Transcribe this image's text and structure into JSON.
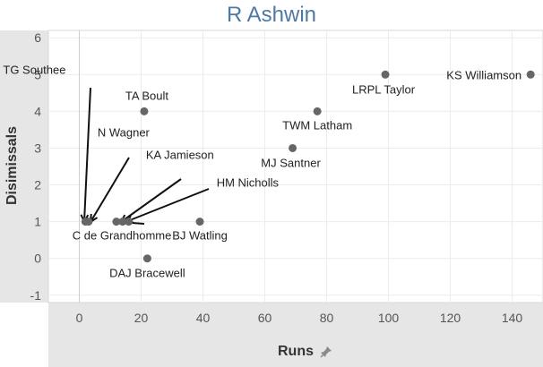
{
  "chart_data": {
    "type": "scatter",
    "title": "R Ashwin",
    "xlabel": "Runs",
    "ylabel": "Disimissals",
    "xlim": [
      -10,
      150
    ],
    "ylim": [
      -1.2,
      6.2
    ],
    "x_ticks": [
      0,
      20,
      40,
      60,
      80,
      100,
      120,
      140
    ],
    "y_ticks": [
      -1,
      0,
      1,
      2,
      3,
      4,
      5,
      6
    ],
    "point_color": "#666666",
    "points": [
      {
        "label": "TG Southee",
        "x": 2,
        "y": 1
      },
      {
        "label": "N Wagner",
        "x": 3,
        "y": 1
      },
      {
        "label": "KA Jamieson",
        "x": 12,
        "y": 1
      },
      {
        "label": "C de Grandhomme",
        "x": 14,
        "y": 1
      },
      {
        "label": "HM Nicholls",
        "x": 16,
        "y": 1
      },
      {
        "label": "BJ Watling",
        "x": 39,
        "y": 1
      },
      {
        "label": "DAJ Bracewell",
        "x": 22,
        "y": 0
      },
      {
        "label": "TA Boult",
        "x": 21,
        "y": 4
      },
      {
        "label": "MJ Santner",
        "x": 69,
        "y": 3
      },
      {
        "label": "TWM Latham",
        "x": 77,
        "y": 4
      },
      {
        "label": "LRPL Taylor",
        "x": 99,
        "y": 5
      },
      {
        "label": "KS Williamson",
        "x": 146,
        "y": 5
      }
    ]
  }
}
